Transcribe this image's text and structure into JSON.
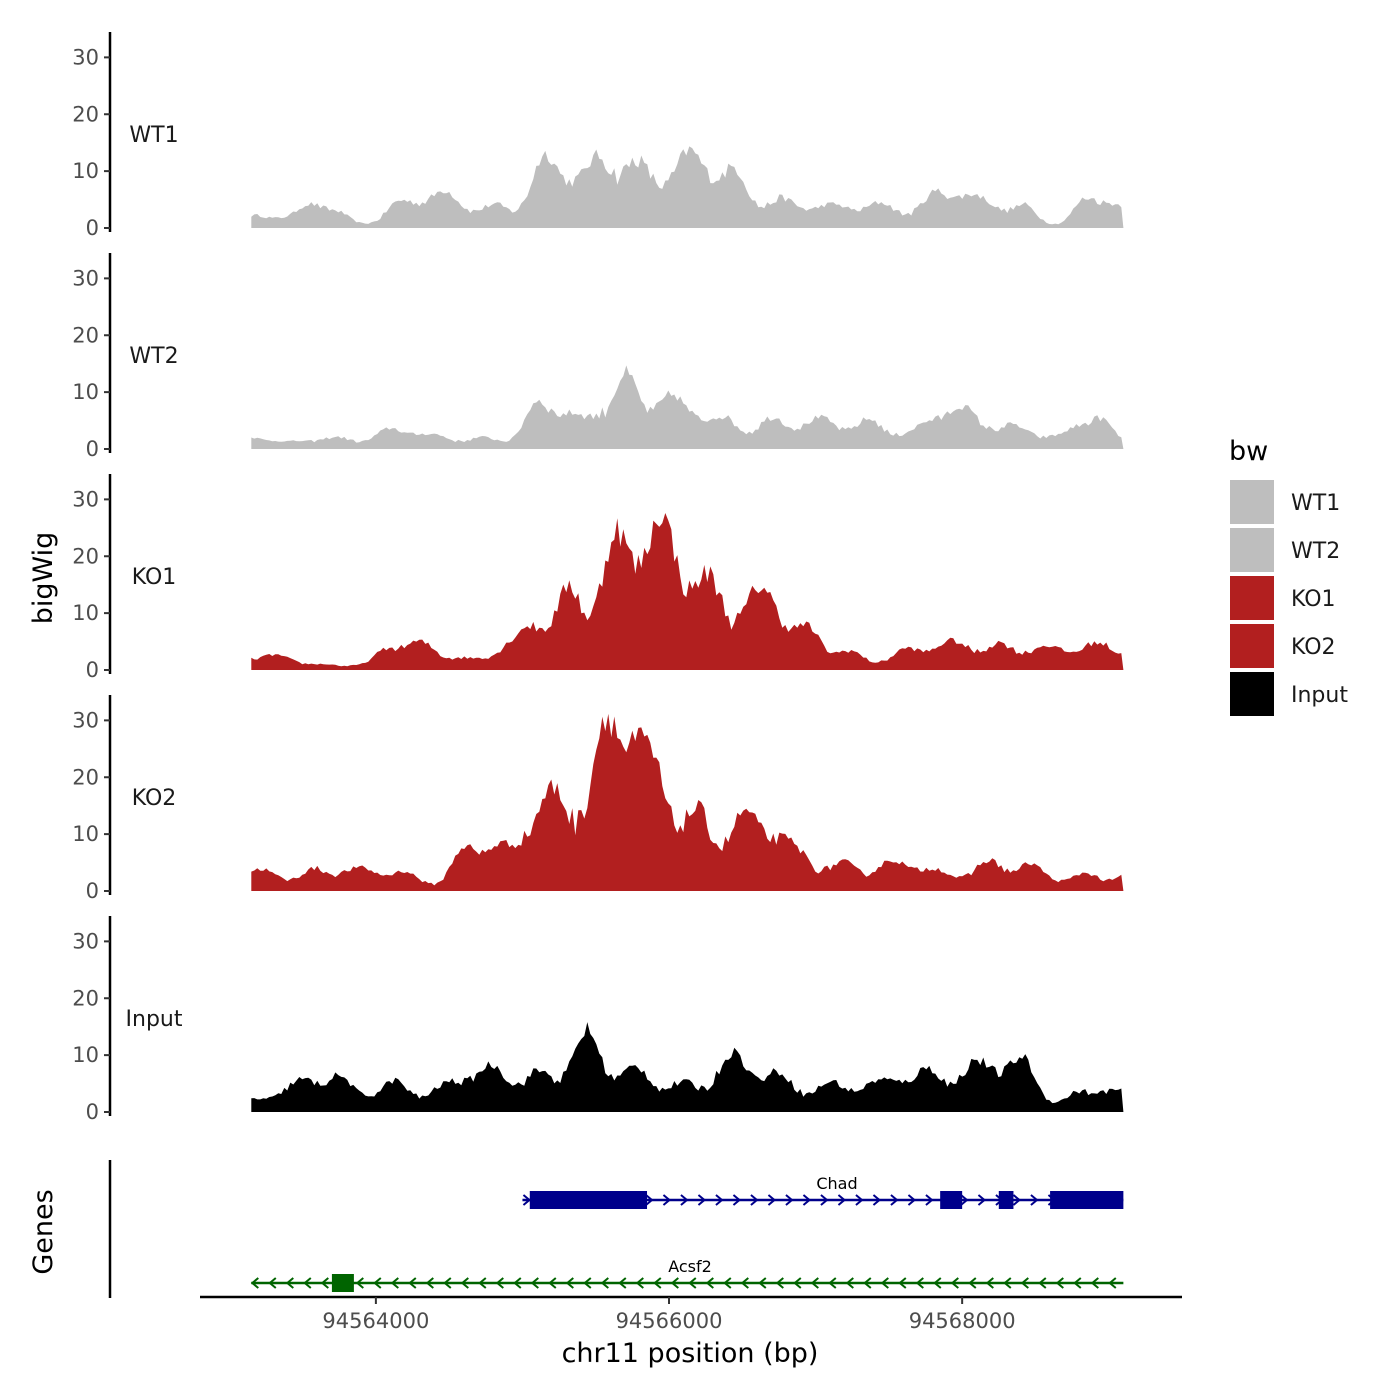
{
  "chart_data": {
    "type": "area",
    "title": "",
    "ylabel": "bigWig",
    "xlabel": "chr11 position (bp)",
    "genes_label": "Genes",
    "xlim": [
      94562800,
      94569500
    ],
    "x_ticks": [
      94564000,
      94566000,
      94568000
    ],
    "x_tick_labels": [
      "94564000",
      "94566000",
      "94568000"
    ],
    "ylim": [
      0,
      32
    ],
    "y_ticks": [
      0,
      10,
      20,
      30
    ],
    "y_tick_labels": [
      "0",
      "10",
      "20",
      "30"
    ],
    "legend": {
      "title": "bw",
      "position": "right",
      "entries": [
        {
          "label": "WT1",
          "color": "#bebebe"
        },
        {
          "label": "WT2",
          "color": "#bebebe"
        },
        {
          "label": "KO1",
          "color": "#b21f1f"
        },
        {
          "label": "KO2",
          "color": "#b21f1f"
        },
        {
          "label": "Input",
          "color": "#000000"
        }
      ]
    },
    "x_positions": [
      94563150,
      94563400,
      94563650,
      94563900,
      94564150,
      94564400,
      94564650,
      94564900,
      94565150,
      94565400,
      94565650,
      94565900,
      94566150,
      94566400,
      94566650,
      94566900,
      94567150,
      94567400,
      94567650,
      94567900,
      94568150,
      94568400,
      94568650,
      94568900,
      94569100
    ],
    "series": [
      {
        "name": "WT1",
        "color": "#bebebe",
        "values": [
          2,
          2,
          4,
          1,
          4,
          5,
          4,
          4,
          10,
          8,
          14,
          10,
          10,
          9,
          6,
          4,
          3,
          4,
          4,
          6,
          4,
          4,
          1,
          5,
          3
        ]
      },
      {
        "name": "WT2",
        "color": "#bebebe",
        "values": [
          2,
          1,
          2,
          2,
          3,
          2,
          2,
          2,
          7,
          5,
          13,
          8,
          6,
          5,
          5,
          4,
          4,
          5,
          3,
          6,
          5,
          4,
          2,
          5,
          2
        ]
      },
      {
        "name": "KO1",
        "color": "#b21f1f",
        "values": [
          2,
          2,
          1,
          1,
          4,
          4,
          2,
          4,
          8,
          15,
          22,
          20,
          17,
          14,
          12,
          6,
          4,
          2,
          3,
          4,
          5,
          4,
          3,
          4,
          5
        ]
      },
      {
        "name": "KO2",
        "color": "#b21f1f",
        "values": [
          3,
          3,
          4,
          3,
          3,
          2,
          8,
          6,
          16,
          20,
          28,
          18,
          14,
          12,
          10,
          6,
          5,
          4,
          4,
          3,
          5,
          4,
          2,
          3,
          3
        ]
      },
      {
        "name": "Input",
        "color": "#000000",
        "values": [
          2,
          5,
          6,
          3,
          5,
          4,
          6,
          6,
          7,
          12,
          6,
          6,
          5,
          8,
          6,
          5,
          5,
          4,
          6,
          8,
          8,
          7,
          2,
          5,
          3
        ]
      }
    ],
    "genes": [
      {
        "name": "Chad",
        "strand": "+",
        "color": "#00008b",
        "start": 94565000,
        "end": 94569100,
        "exons": [
          [
            94565050,
            94565850
          ],
          [
            94567850,
            94568000
          ],
          [
            94568250,
            94568350
          ],
          [
            94568600,
            94569100
          ]
        ]
      },
      {
        "name": "Acsf2",
        "strand": "-",
        "color": "#006400",
        "start": 94563150,
        "end": 94569100,
        "exons": [
          [
            94563700,
            94563850
          ]
        ]
      }
    ]
  }
}
